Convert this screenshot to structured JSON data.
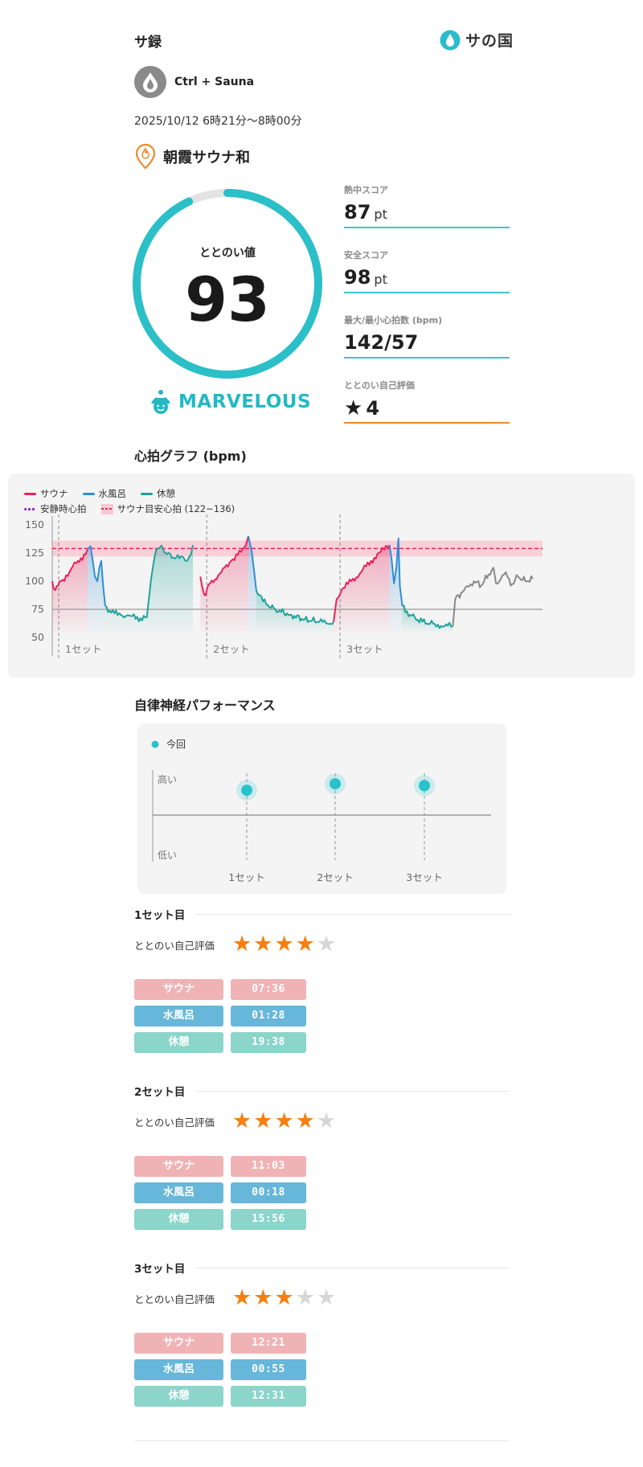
{
  "app_title": "サ録",
  "brand": {
    "logo_text": "サの国"
  },
  "user": {
    "name": "Ctrl + Sauna"
  },
  "session": {
    "datetime": "2025/10/12 6時21分〜8時00分"
  },
  "facility": {
    "name": "朝霞サウナ和"
  },
  "totonoi": {
    "label": "ととのい値",
    "value": "93",
    "value_num": 93,
    "max": 100,
    "grade": "MARVELOUS"
  },
  "scores": [
    {
      "label": "熱中スコア",
      "value": "87",
      "unit": "pt"
    },
    {
      "label": "安全スコア",
      "value": "98",
      "unit": "pt"
    },
    {
      "label": "最大/最小心拍数 (bpm)",
      "value": "142/57",
      "unit": ""
    },
    {
      "label": "ととのい自己評価",
      "value": "4",
      "unit": ""
    }
  ],
  "hr_graph": {
    "title": "心拍グラフ (bpm)",
    "legend": {
      "sauna": "サウナ",
      "water": "水風呂",
      "rest": "休憩",
      "resting_hr": "安静時心拍",
      "target": "サウナ目安心拍 (122~136)"
    },
    "colors": {
      "sauna": "#e8235c",
      "water": "#2f8ed8",
      "rest": "#1fa39a",
      "after": "#8a8a8a",
      "resting_hr": "#9b30d9",
      "target": "#f0607a"
    }
  },
  "ans": {
    "title": "自律神経パフォーマンス",
    "legend": "今回",
    "high": "高い",
    "low": "低い",
    "sets": [
      "1セット",
      "2セット",
      "3セット"
    ],
    "accent": "#28c2cc"
  },
  "sets": [
    {
      "title": "1セット目",
      "rating_label": "ととのい自己評価",
      "rating": 4,
      "rating_max": 5,
      "rows": [
        {
          "label": "サウナ",
          "time": "07:36"
        },
        {
          "label": "水風呂",
          "time": "01:28"
        },
        {
          "label": "休憩",
          "time": "19:38"
        }
      ]
    },
    {
      "title": "2セット目",
      "rating_label": "ととのい自己評価",
      "rating": 4,
      "rating_max": 5,
      "rows": [
        {
          "label": "サウナ",
          "time": "11:03"
        },
        {
          "label": "水風呂",
          "time": "00:18"
        },
        {
          "label": "休憩",
          "time": "15:56"
        }
      ]
    },
    {
      "title": "3セット目",
      "rating_label": "ととのい自己評価",
      "rating": 3,
      "rating_max": 5,
      "rows": [
        {
          "label": "サウナ",
          "time": "12:21"
        },
        {
          "label": "水風呂",
          "time": "00:55"
        },
        {
          "label": "休憩",
          "time": "12:31"
        }
      ]
    }
  ],
  "chart_data": [
    {
      "type": "line",
      "title": "心拍グラフ (bpm)",
      "ylabel": "",
      "xlabel": "",
      "y_ticks": [
        150,
        125,
        100,
        75,
        50
      ],
      "ylim": [
        45,
        155
      ],
      "x_range": [
        0,
        1000
      ],
      "x_tick_labels": [
        "1セット",
        "2セット",
        "3セット"
      ],
      "set_starts": [
        0,
        302,
        574
      ],
      "resting_hr": 75,
      "target_band": [
        122,
        136
      ],
      "target_line": 129,
      "segments": [
        {
          "phase": "sauna",
          "points": [
            [
              0,
              100
            ],
            [
              6,
              92
            ],
            [
              18,
              100
            ],
            [
              35,
              108
            ],
            [
              52,
              118
            ],
            [
              68,
              124
            ],
            [
              72,
              128
            ]
          ]
        },
        {
          "phase": "water",
          "points": [
            [
              72,
              128
            ],
            [
              78,
              131
            ],
            [
              82,
              120
            ],
            [
              87,
              104
            ],
            [
              92,
              100
            ],
            [
              96,
              112
            ],
            [
              100,
              118
            ],
            [
              104,
              95
            ],
            [
              108,
              78
            ]
          ]
        },
        {
          "phase": "rest",
          "points": [
            [
              108,
              78
            ],
            [
              120,
              72
            ],
            [
              140,
              70
            ],
            [
              160,
              69
            ],
            [
              180,
              67
            ],
            [
              193,
              68
            ],
            [
              198,
              88
            ],
            [
              205,
              112
            ],
            [
              212,
              128
            ],
            [
              220,
              130
            ],
            [
              235,
              124
            ],
            [
              250,
              120
            ],
            [
              265,
              122
            ],
            [
              275,
              118
            ],
            [
              283,
              124
            ],
            [
              287,
              132
            ]
          ]
        },
        {
          "phase": "sauna",
          "points": [
            [
              302,
              104
            ],
            [
              310,
              88
            ],
            [
              322,
              98
            ],
            [
              345,
              108
            ],
            [
              365,
              118
            ],
            [
              385,
              126
            ],
            [
              395,
              132
            ],
            [
              400,
              140
            ]
          ]
        },
        {
          "phase": "water",
          "points": [
            [
              400,
              140
            ],
            [
              404,
              132
            ],
            [
              407,
              126
            ],
            [
              412,
              108
            ],
            [
              416,
              92
            ]
          ]
        },
        {
          "phase": "rest",
          "points": [
            [
              416,
              92
            ],
            [
              430,
              82
            ],
            [
              455,
              75
            ],
            [
              485,
              70
            ],
            [
              515,
              66
            ],
            [
              545,
              64
            ],
            [
              565,
              62
            ],
            [
              574,
              64
            ]
          ]
        },
        {
          "phase": "sauna",
          "points": [
            [
              574,
              64
            ],
            [
              580,
              84
            ],
            [
              590,
              92
            ],
            [
              610,
              100
            ],
            [
              630,
              108
            ],
            [
              650,
              118
            ],
            [
              670,
              126
            ],
            [
              684,
              130
            ],
            [
              688,
              132
            ]
          ]
        },
        {
          "phase": "water",
          "points": [
            [
              688,
              132
            ],
            [
              692,
              120
            ],
            [
              697,
              98
            ],
            [
              702,
              112
            ],
            [
              706,
              138
            ],
            [
              709,
              96
            ],
            [
              714,
              78
            ]
          ]
        },
        {
          "phase": "rest",
          "points": [
            [
              714,
              78
            ],
            [
              730,
              70
            ],
            [
              755,
              64
            ],
            [
              780,
              62
            ],
            [
              800,
              60
            ],
            [
              817,
              60
            ]
          ]
        },
        {
          "phase": "after",
          "points": [
            [
              817,
              60
            ],
            [
              822,
              84
            ],
            [
              840,
              92
            ],
            [
              860,
              100
            ],
            [
              875,
              96
            ],
            [
              890,
              106
            ],
            [
              900,
              112
            ],
            [
              905,
              98
            ],
            [
              915,
              102
            ],
            [
              925,
              108
            ],
            [
              935,
              96
            ],
            [
              950,
              104
            ],
            [
              965,
              100
            ],
            [
              980,
              102
            ]
          ]
        }
      ]
    },
    {
      "type": "scatter",
      "title": "自律神経パフォーマンス",
      "categories": [
        "1セット",
        "2セット",
        "3セット"
      ],
      "series": [
        {
          "name": "今回",
          "values": [
            0.78,
            0.85,
            0.83
          ]
        }
      ],
      "ylabel_high": "高い",
      "ylabel_low": "低い",
      "ylim": [
        0,
        1
      ]
    }
  ]
}
